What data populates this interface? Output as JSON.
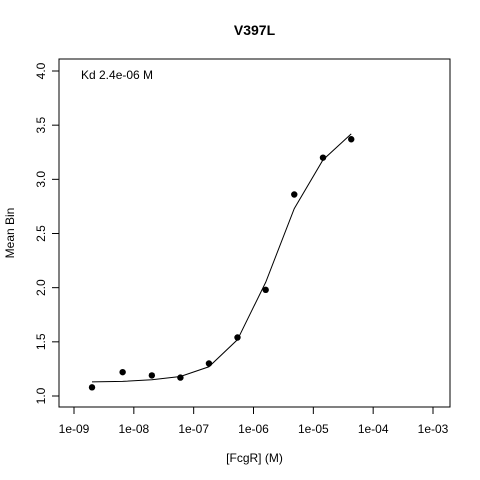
{
  "chart_data": {
    "type": "scatter",
    "title": "V397L",
    "xlabel": "[FcgR] (M)",
    "ylabel": "Mean Bin",
    "x_scale": "log10",
    "xlim": [
      1e-09,
      0.001
    ],
    "ylim": [
      1.0,
      4.0
    ],
    "x_ticks": [
      1e-09,
      1e-08,
      1e-07,
      1e-06,
      1e-05,
      0.0001,
      0.001
    ],
    "x_tick_labels": [
      "1e-09",
      "1e-08",
      "1e-07",
      "1e-06",
      "1e-05",
      "1e-04",
      "1e-03"
    ],
    "y_ticks": [
      1.0,
      1.5,
      2.0,
      2.5,
      3.0,
      3.5,
      4.0
    ],
    "y_tick_labels": [
      "1.0",
      "1.5",
      "2.0",
      "2.5",
      "3.0",
      "3.5",
      "4.0"
    ],
    "grid": false,
    "annotation": "Kd 2.4e-06 M",
    "series": [
      {
        "style": "points",
        "color": "#000000",
        "x": [
          2e-09,
          6.5e-09,
          2e-08,
          6e-08,
          1.8e-07,
          5.4e-07,
          1.6e-06,
          4.8e-06,
          1.45e-05,
          4.3e-05
        ],
        "y": [
          1.08,
          1.22,
          1.19,
          1.17,
          1.3,
          1.54,
          1.98,
          2.86,
          3.2,
          3.37
        ]
      },
      {
        "style": "line",
        "color": "#000000",
        "x": [
          2e-09,
          6.5e-09,
          2e-08,
          6e-08,
          1.8e-07,
          5.4e-07,
          1.6e-06,
          4.8e-06,
          1.45e-05,
          4.3e-05
        ],
        "y": [
          1.13,
          1.135,
          1.15,
          1.18,
          1.27,
          1.52,
          2.05,
          2.73,
          3.18,
          3.42
        ]
      }
    ]
  }
}
